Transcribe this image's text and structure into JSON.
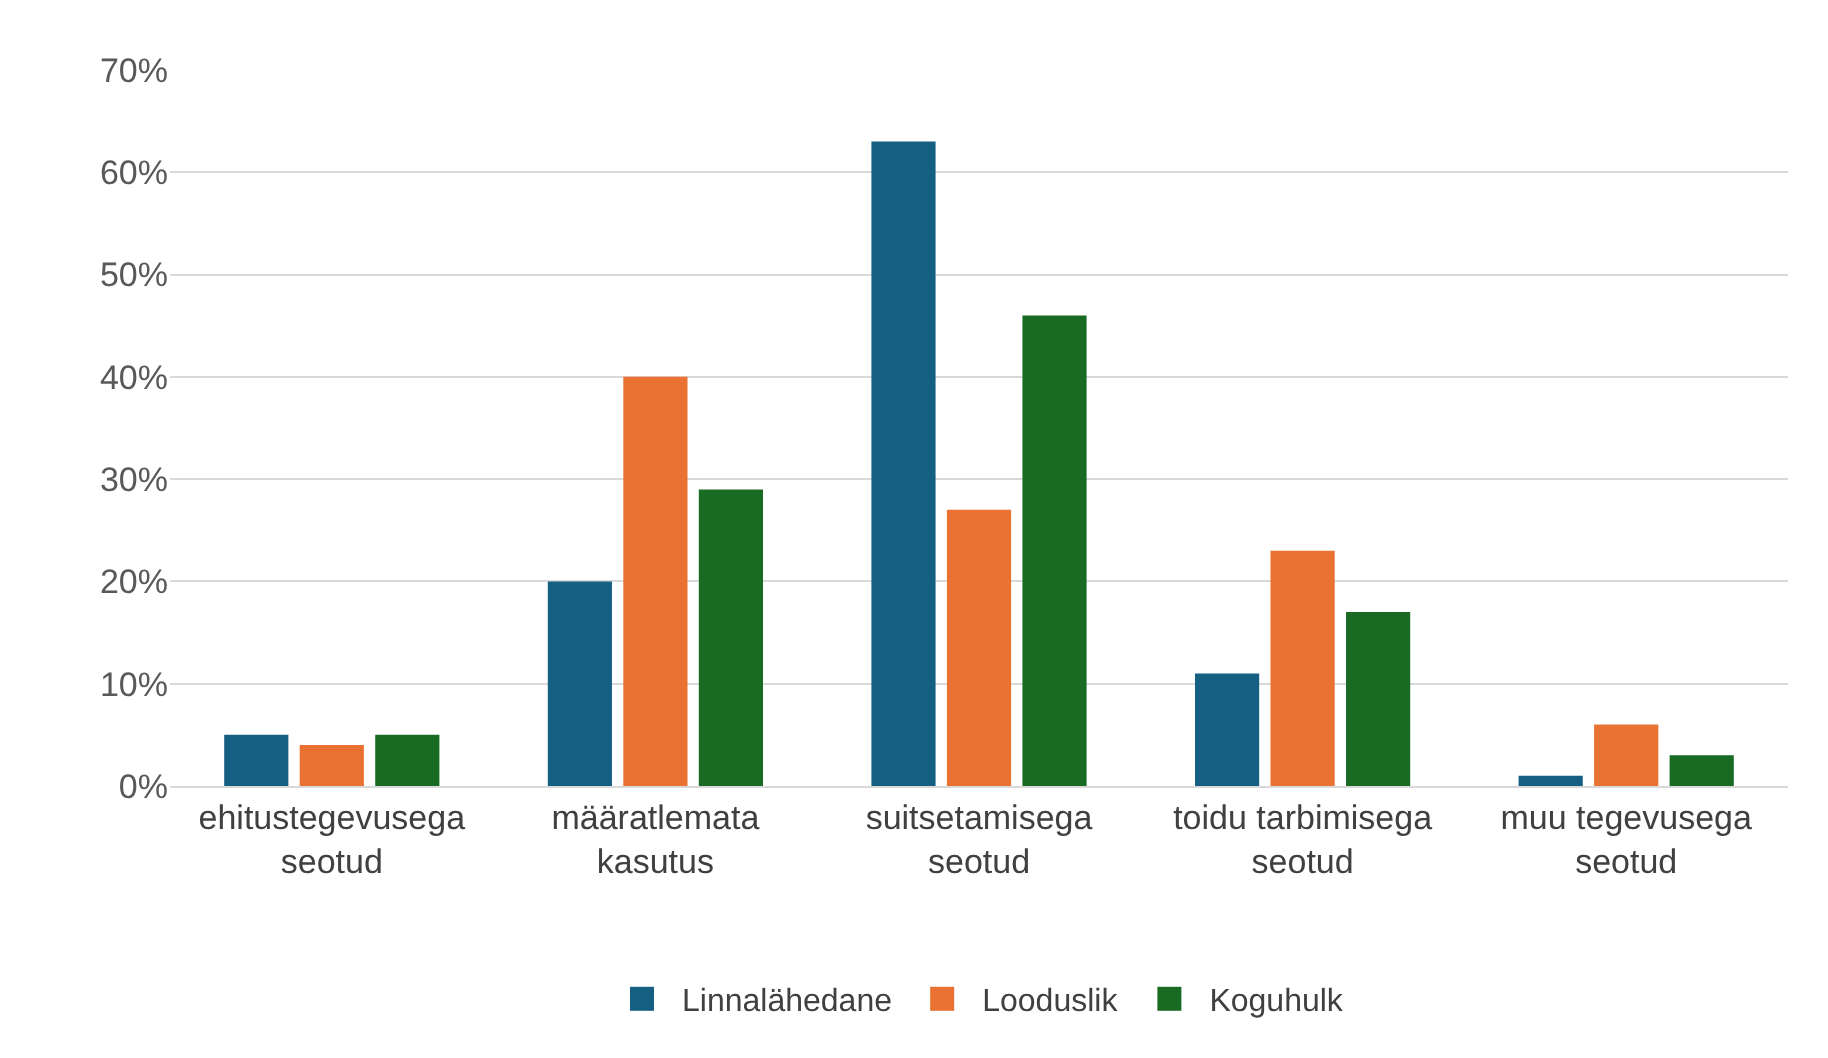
{
  "chart_data": {
    "type": "bar",
    "categories": [
      "ehitustegevusega seotud",
      "määratlemata kasutus",
      "suitsetamisega seotud",
      "toidu tarbimisega seotud",
      "muu tegevusega seotud"
    ],
    "series": [
      {
        "name": "Linnalähedane",
        "color": "#156082",
        "values": [
          5,
          20,
          63,
          11,
          1
        ]
      },
      {
        "name": "Looduslik",
        "color": "#e97132",
        "values": [
          4,
          40,
          27,
          23,
          6
        ]
      },
      {
        "name": "Koguhulk",
        "color": "#196b24",
        "values": [
          5,
          29,
          46,
          17,
          3
        ]
      }
    ],
    "ylim": [
      0,
      70
    ],
    "yticks": [
      {
        "value": 0,
        "label": "0%"
      },
      {
        "value": 10,
        "label": "10%"
      },
      {
        "value": 20,
        "label": "20%"
      },
      {
        "value": 30,
        "label": "30%"
      },
      {
        "value": 40,
        "label": "40%"
      },
      {
        "value": 50,
        "label": "50%"
      },
      {
        "value": 60,
        "label": "60%"
      },
      {
        "value": 70,
        "label": "70%"
      }
    ],
    "grid": "y",
    "legend": "bottom"
  }
}
